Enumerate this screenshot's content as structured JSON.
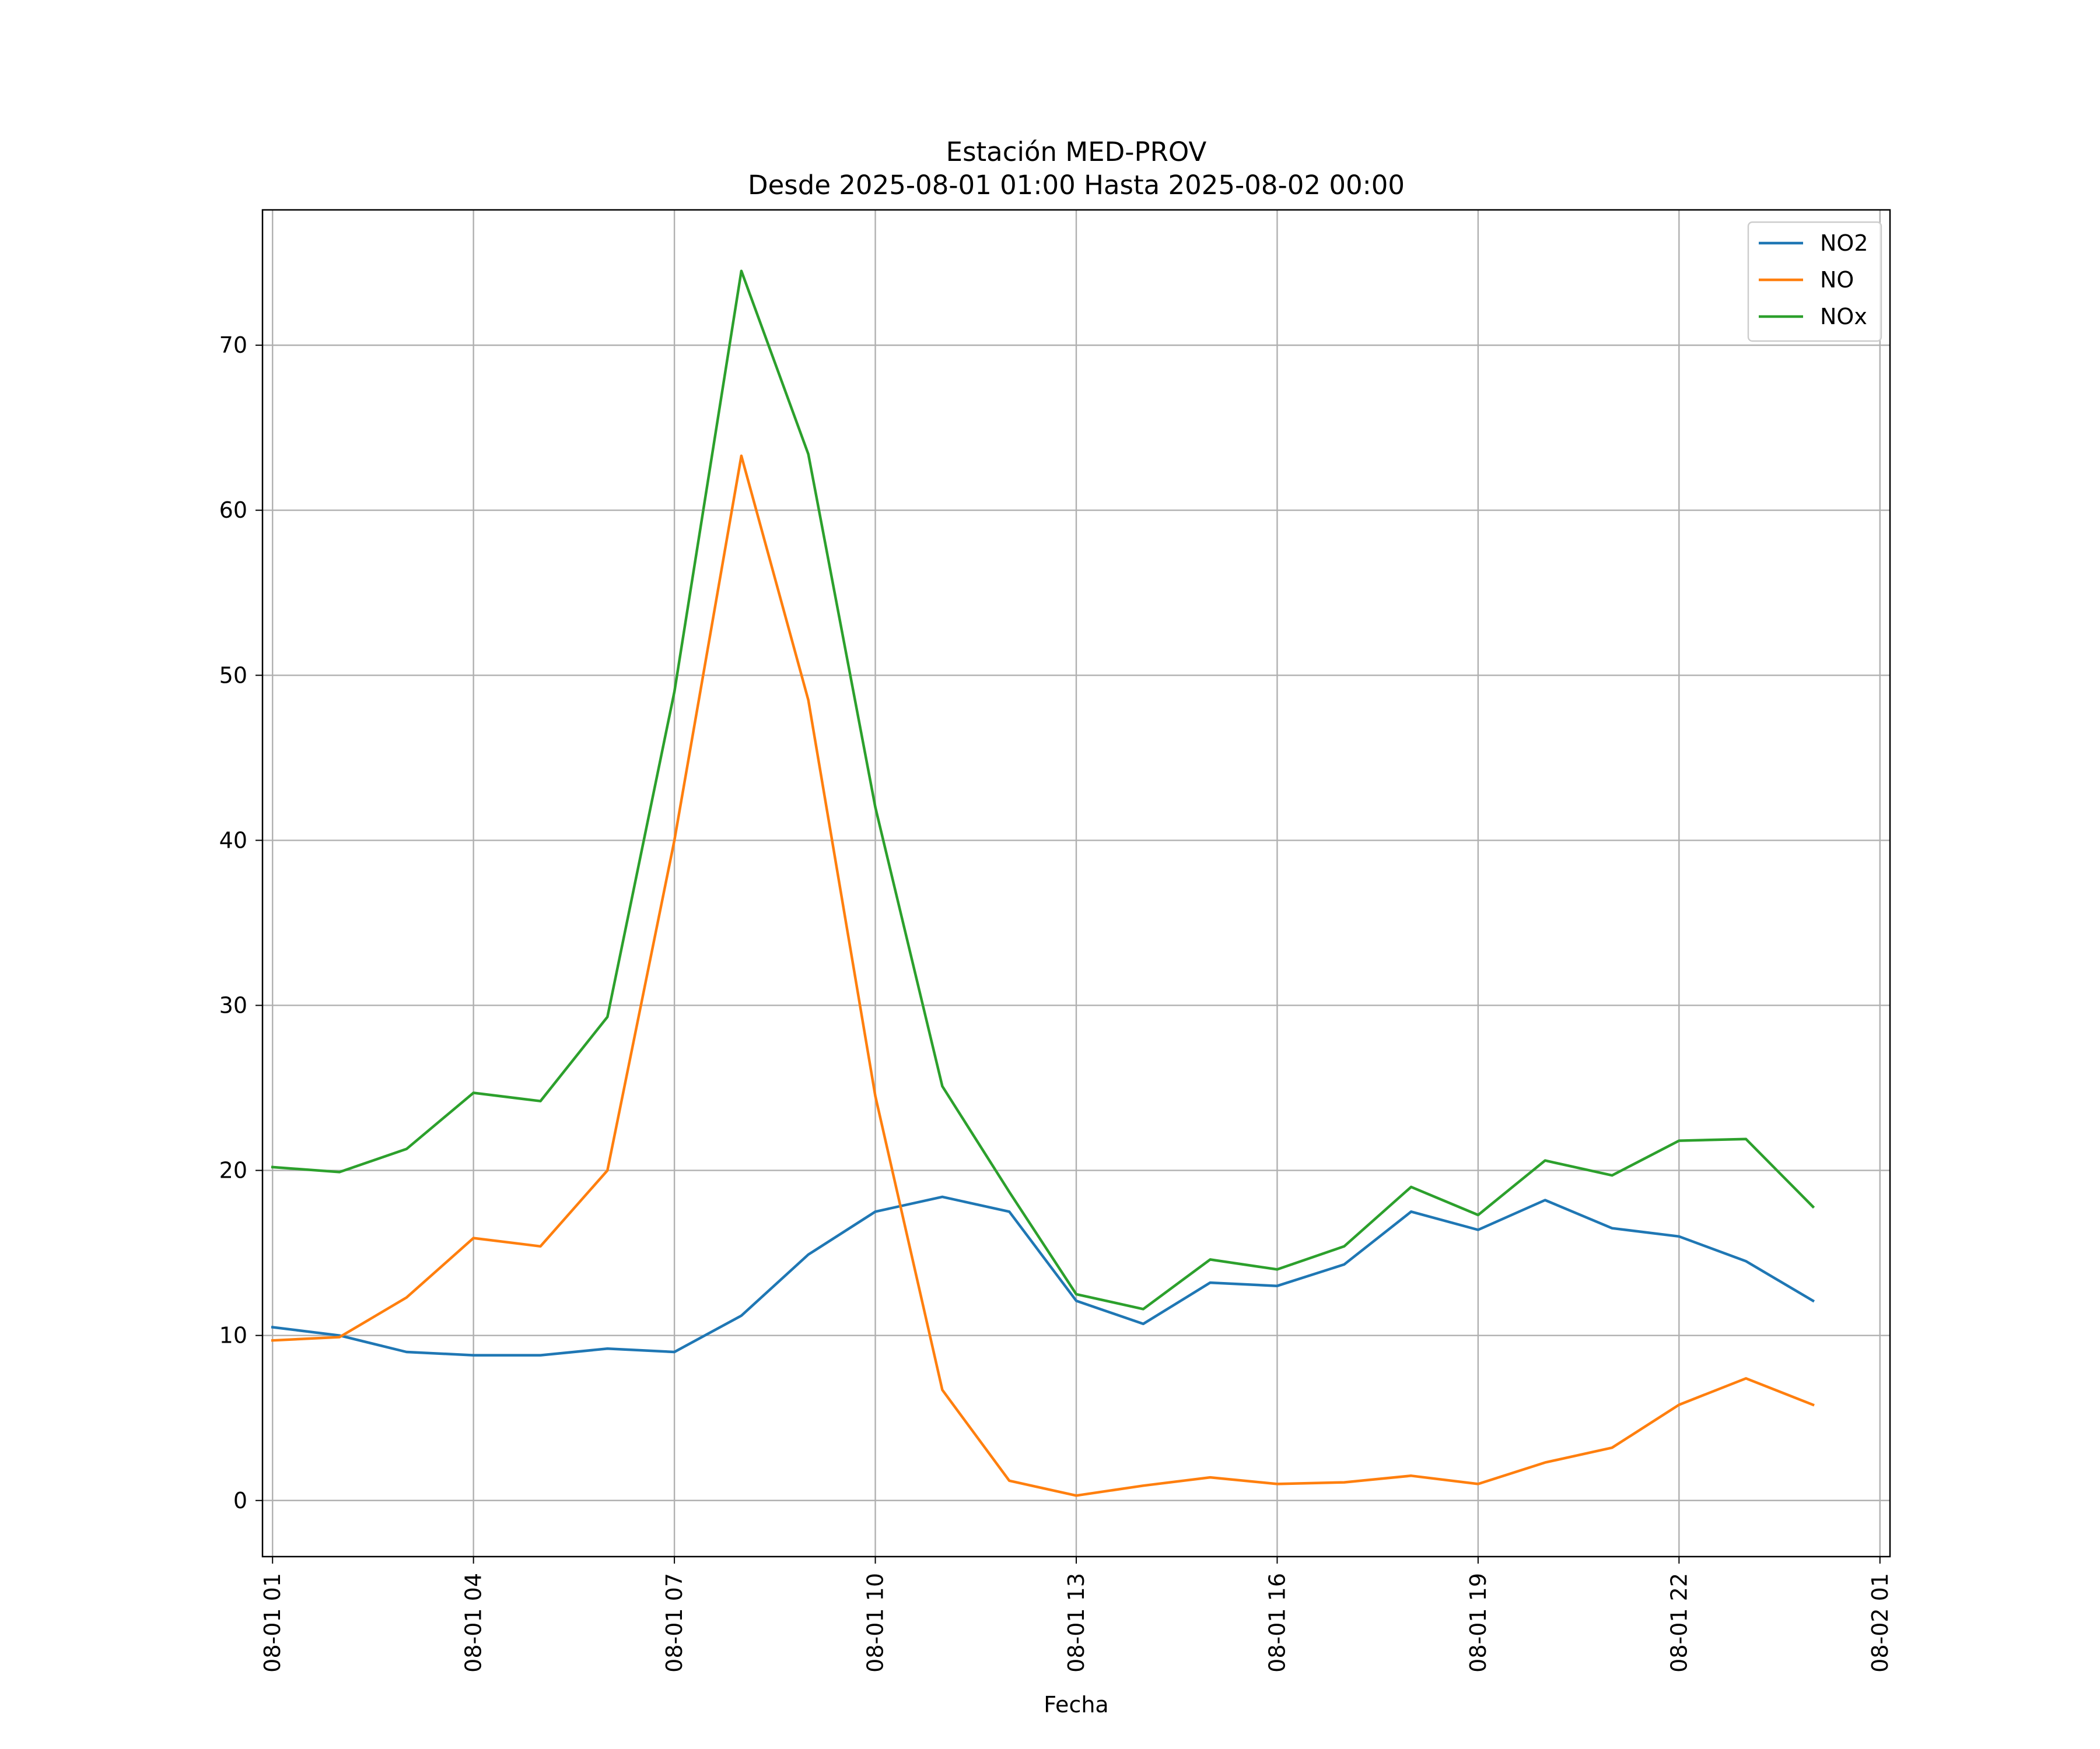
{
  "chart_data": {
    "type": "line",
    "title": "Estación MED-PROV",
    "subtitle": "Desde 2025-08-01 01:00 Hasta 2025-08-02 00:00",
    "xlabel": "Fecha",
    "ylabel": "",
    "x": [
      "2025-08-01 01:00",
      "2025-08-01 02:00",
      "2025-08-01 03:00",
      "2025-08-01 04:00",
      "2025-08-01 05:00",
      "2025-08-01 06:00",
      "2025-08-01 07:00",
      "2025-08-01 08:00",
      "2025-08-01 09:00",
      "2025-08-01 10:00",
      "2025-08-01 11:00",
      "2025-08-01 12:00",
      "2025-08-01 13:00",
      "2025-08-01 14:00",
      "2025-08-01 15:00",
      "2025-08-01 16:00",
      "2025-08-01 17:00",
      "2025-08-01 18:00",
      "2025-08-01 19:00",
      "2025-08-01 20:00",
      "2025-08-01 21:00",
      "2025-08-01 22:00",
      "2025-08-01 23:00",
      "2025-08-02 00:00"
    ],
    "x_ticks": [
      "08-01 01",
      "08-01 04",
      "08-01 07",
      "08-01 10",
      "08-01 13",
      "08-01 16",
      "08-01 19",
      "08-01 22",
      "08-02 01"
    ],
    "x_tick_values": [
      "2025-08-01 01:00",
      "2025-08-01 04:00",
      "2025-08-01 07:00",
      "2025-08-01 10:00",
      "2025-08-01 13:00",
      "2025-08-01 16:00",
      "2025-08-01 19:00",
      "2025-08-01 22:00",
      "2025-08-02 01:00"
    ],
    "xlim": [
      "2025-08-01 00:51",
      "2025-08-02 01:09"
    ],
    "y_ticks": [
      0,
      10,
      20,
      30,
      40,
      50,
      60,
      70
    ],
    "ylim": [
      -3.4,
      78.2
    ],
    "grid": true,
    "legend_position": "top-right",
    "series": [
      {
        "name": "NO2",
        "color": "#1f77b4",
        "values": [
          10.5,
          10.0,
          9.0,
          8.8,
          8.8,
          9.2,
          9.0,
          11.2,
          14.9,
          17.5,
          18.4,
          17.5,
          12.1,
          10.7,
          13.2,
          13.0,
          14.3,
          17.5,
          16.4,
          18.2,
          16.5,
          16.0,
          14.5,
          12.1
        ]
      },
      {
        "name": "NO",
        "color": "#ff7f0e",
        "values": [
          9.7,
          9.9,
          12.3,
          15.9,
          15.4,
          20.0,
          40.0,
          63.3,
          48.5,
          24.5,
          6.7,
          1.2,
          0.3,
          0.9,
          1.4,
          1.0,
          1.1,
          1.5,
          1.0,
          2.3,
          3.2,
          5.8,
          7.4,
          5.8
        ]
      },
      {
        "name": "NOx",
        "color": "#2ca02c",
        "values": [
          20.2,
          19.9,
          21.3,
          24.7,
          24.2,
          29.3,
          49.0,
          74.5,
          63.4,
          42.0,
          25.1,
          18.7,
          12.5,
          11.6,
          14.6,
          14.0,
          15.4,
          19.0,
          17.3,
          20.6,
          19.7,
          21.8,
          21.9,
          17.8
        ]
      }
    ]
  }
}
